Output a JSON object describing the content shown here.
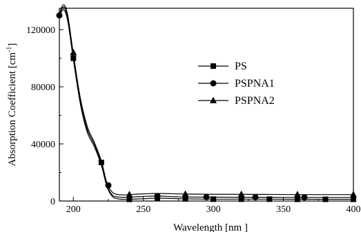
{
  "chart_data": {
    "type": "line",
    "xlabel": "Wavelength [nm ]",
    "ylabel_main": "Absorption Coefficient [cm",
    "ylabel_sup": "-1",
    "ylabel_close": "]",
    "xlim": [
      190,
      400
    ],
    "ylim": [
      0,
      135000
    ],
    "x_ticks": [
      200,
      250,
      300,
      350,
      400
    ],
    "x_tick_labels": [
      "200",
      "250",
      "300",
      "350",
      "400"
    ],
    "y_ticks": [
      0,
      40000,
      80000,
      120000
    ],
    "y_tick_labels": [
      "0",
      "40000",
      "80000",
      "120000"
    ],
    "grid": false,
    "legend_position": "right",
    "series": [
      {
        "name": "PS",
        "marker": "square",
        "curve_x": [
          190,
          193,
          196,
          200,
          205,
          210,
          215,
          220,
          224,
          228,
          232,
          236,
          240,
          250,
          260,
          270,
          280,
          300,
          320,
          340,
          360,
          380,
          400
        ],
        "curve_y": [
          129000,
          134000,
          126000,
          99000,
          68000,
          48000,
          38000,
          25000,
          10000,
          3000,
          1500,
          1200,
          1200,
          1600,
          2000,
          1800,
          1500,
          1300,
          1300,
          1300,
          1200,
          1200,
          1200
        ],
        "marker_x": [
          200,
          220,
          240,
          260,
          280,
          300,
          320,
          340,
          360,
          380,
          400
        ],
        "marker_y": [
          100000,
          27000,
          1200,
          1800,
          1500,
          1300,
          1300,
          1300,
          1200,
          1200,
          1200
        ]
      },
      {
        "name": "PSPNA1",
        "marker": "circle",
        "curve_x": [
          190,
          193,
          196,
          200,
          205,
          210,
          215,
          220,
          224,
          228,
          232,
          236,
          240,
          250,
          260,
          270,
          280,
          300,
          320,
          340,
          360,
          380,
          400
        ],
        "curve_y": [
          130000,
          136000,
          128000,
          101000,
          70000,
          50000,
          39500,
          26500,
          11000,
          4000,
          2800,
          2600,
          2700,
          3200,
          3500,
          3100,
          2800,
          2700,
          2600,
          2600,
          2500,
          2500,
          2500
        ],
        "marker_x": [
          190,
          225,
          260,
          295,
          330,
          365
        ],
        "marker_y": [
          130000,
          11000,
          3500,
          2700,
          2600,
          2500
        ]
      },
      {
        "name": "PSPNA2",
        "marker": "triangle",
        "curve_x": [
          190,
          193,
          196,
          200,
          205,
          210,
          215,
          220,
          224,
          228,
          232,
          236,
          240,
          250,
          260,
          270,
          280,
          300,
          320,
          340,
          360,
          380,
          400
        ],
        "curve_y": [
          131000,
          137500,
          130000,
          103000,
          72000,
          52000,
          41000,
          28000,
          12500,
          6000,
          4500,
          4300,
          4500,
          5000,
          5300,
          5100,
          4900,
          4700,
          4700,
          4600,
          4500,
          4500,
          4500
        ],
        "marker_x": [
          200,
          240,
          280,
          320,
          360,
          400
        ],
        "marker_y": [
          104000,
          4500,
          4900,
          4700,
          4500,
          4500
        ]
      }
    ]
  }
}
